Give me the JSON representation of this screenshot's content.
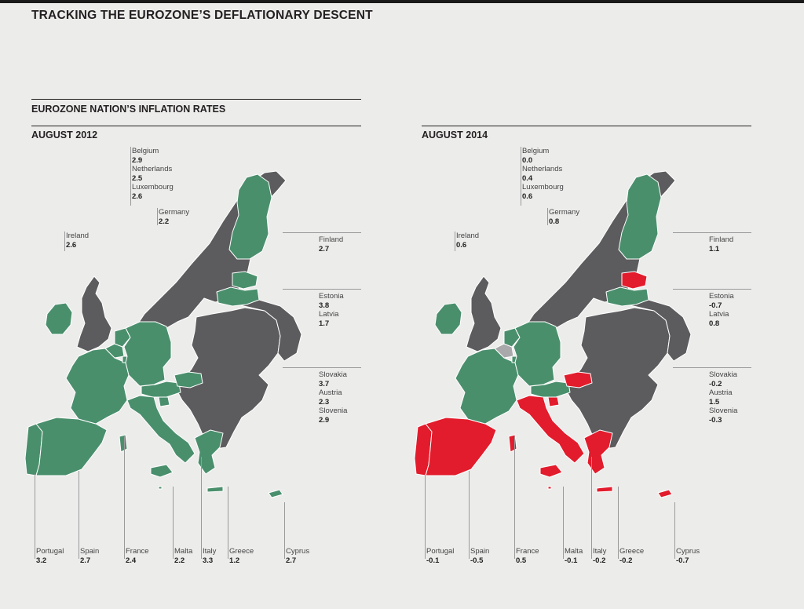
{
  "title": "TRACKING THE EUROZONE’S DEFLATIONARY DESCENT",
  "subtitle": "EUROZONE NATION’S INFLATION RATES",
  "colors": {
    "positive": "#4a8f6c",
    "negative": "#e21c2c",
    "other": "#5c5c5e",
    "unchanged_neutral": "#a9a9ab",
    "border": "#ffffff"
  },
  "legend_note": "",
  "panels": [
    {
      "heading": "AUGUST 2012",
      "countries": {
        "belgium": {
          "name": "Belgium",
          "value": "2.9"
        },
        "netherlands": {
          "name": "Netherlands",
          "value": "2.5"
        },
        "luxembourg": {
          "name": "Luxembourg",
          "value": "2.6"
        },
        "germany": {
          "name": "Germany",
          "value": "2.2"
        },
        "ireland": {
          "name": "Ireland",
          "value": "2.6"
        },
        "finland": {
          "name": "Finland",
          "value": "2.7"
        },
        "estonia": {
          "name": "Estonia",
          "value": "3.8"
        },
        "latvia": {
          "name": "Latvia",
          "value": "1.7"
        },
        "slovakia": {
          "name": "Slovakia",
          "value": "3.7"
        },
        "austria": {
          "name": "Austria",
          "value": "2.3"
        },
        "slovenia": {
          "name": "Slovenia",
          "value": "2.9"
        },
        "portugal": {
          "name": "Portugal",
          "value": "3.2"
        },
        "spain": {
          "name": "Spain",
          "value": "2.7"
        },
        "france": {
          "name": "France",
          "value": "2.4"
        },
        "malta": {
          "name": "Malta",
          "value": "2.2"
        },
        "italy": {
          "name": "Italy",
          "value": "3.3"
        },
        "greece": {
          "name": "Greece",
          "value": "1.2"
        },
        "cyprus": {
          "name": "Cyprus",
          "value": "2.7"
        }
      }
    },
    {
      "heading": "AUGUST 2014",
      "countries": {
        "belgium": {
          "name": "Belgium",
          "value": "0.0"
        },
        "netherlands": {
          "name": "Netherlands",
          "value": "0.4"
        },
        "luxembourg": {
          "name": "Luxembourg",
          "value": "0.6"
        },
        "germany": {
          "name": "Germany",
          "value": "0.8"
        },
        "ireland": {
          "name": "Ireland",
          "value": "0.6"
        },
        "finland": {
          "name": "Finland",
          "value": "1.1"
        },
        "estonia": {
          "name": "Estonia",
          "value": "-0.7"
        },
        "latvia": {
          "name": "Latvia",
          "value": "0.8"
        },
        "slovakia": {
          "name": "Slovakia",
          "value": "-0.2"
        },
        "austria": {
          "name": "Austria",
          "value": "1.5"
        },
        "slovenia": {
          "name": "Slovenia",
          "value": "-0.3"
        },
        "portugal": {
          "name": "Portugal",
          "value": "-0.1"
        },
        "spain": {
          "name": "Spain",
          "value": "-0.5"
        },
        "france": {
          "name": "France",
          "value": "0.5"
        },
        "malta": {
          "name": "Malta",
          "value": "-0.1"
        },
        "italy": {
          "name": "Italy",
          "value": "-0.2"
        },
        "greece": {
          "name": "Greece",
          "value": "-0.2"
        },
        "cyprus": {
          "name": "Cyprus",
          "value": "-0.7"
        }
      }
    }
  ]
}
